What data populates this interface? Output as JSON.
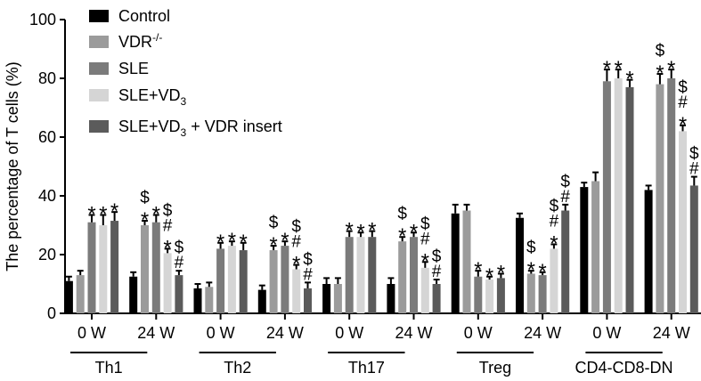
{
  "chart_data": {
    "type": "bar",
    "ylabel": "The percentage of T cells (%)",
    "ylim": [
      0,
      100
    ],
    "yticks": [
      "0",
      "20",
      "40",
      "60",
      "80",
      "100"
    ],
    "grid": false,
    "legend_placement": "top-left",
    "groups": [
      "Th1",
      "Th2",
      "Th17",
      "Treg",
      "CD4-CD8-DN"
    ],
    "timepoints": [
      "0 W",
      "24 W"
    ],
    "series": [
      {
        "name": "Control",
        "sup": "",
        "sub": "",
        "suffix": "",
        "color": "#000000"
      },
      {
        "name": "VDR",
        "sup": "-/-",
        "sub": "",
        "suffix": "",
        "color": "#9b9b9b"
      },
      {
        "name": "SLE",
        "sup": "",
        "sub": "",
        "suffix": "",
        "color": "#7b7b7b"
      },
      {
        "name": "SLE+VD",
        "sup": "",
        "sub": "3",
        "suffix": "",
        "color": "#d5d5d5"
      },
      {
        "name": "SLE+VD",
        "sup": "",
        "sub": "3",
        "suffix": " + VDR insert",
        "color": "#5b5b5b"
      }
    ],
    "values": [
      [
        [
          11,
          13,
          31,
          30,
          31.5
        ],
        [
          12.5,
          30,
          31,
          20.5,
          13
        ]
      ],
      [
        [
          8.5,
          9,
          22,
          23,
          21.5
        ],
        [
          8,
          21.5,
          23,
          15,
          8.5
        ]
      ],
      [
        [
          10,
          10,
          26,
          26,
          26
        ],
        [
          10,
          24.5,
          26,
          15.5,
          10
        ]
      ],
      [
        [
          34,
          35,
          12.5,
          11.5,
          12
        ],
        [
          32.5,
          13.5,
          13,
          22,
          35
        ]
      ],
      [
        [
          43,
          45,
          79,
          80,
          77
        ],
        [
          42,
          78,
          80,
          62,
          43.5
        ]
      ]
    ],
    "errors": [
      [
        [
          1.5,
          1.5,
          2.5,
          3.5,
          3
        ],
        [
          1.5,
          1.5,
          2.5,
          1.5,
          1.5
        ]
      ],
      [
        [
          1.5,
          1.5,
          2,
          1.5,
          2.5
        ],
        [
          1.5,
          1.5,
          1.5,
          1.5,
          2
        ]
      ],
      [
        [
          2,
          2,
          2,
          1.5,
          2
        ],
        [
          2,
          1.5,
          1.5,
          2,
          1.5
        ]
      ],
      [
        [
          3,
          2,
          2,
          1,
          1.5
        ],
        [
          1.5,
          1,
          1,
          1.5,
          2
        ]
      ],
      [
        [
          1.5,
          3,
          4,
          3,
          2.5
        ],
        [
          1.5,
          3.5,
          3,
          2,
          3
        ]
      ]
    ],
    "annotations": [
      [
        [
          "",
          "",
          "*",
          "*",
          "*"
        ],
        [
          "",
          "$*",
          "*",
          "$#*",
          "$#"
        ]
      ],
      [
        [
          "",
          "",
          "*",
          "*",
          "*"
        ],
        [
          "",
          "$*",
          "*",
          "$#*",
          "$#"
        ]
      ],
      [
        [
          "",
          "",
          "*",
          "*",
          "*"
        ],
        [
          "",
          "$*",
          "*",
          "$#*",
          "$#"
        ]
      ],
      [
        [
          "",
          "",
          "*",
          "*",
          "*"
        ],
        [
          "",
          "$*",
          "*",
          "$#*",
          "$#"
        ]
      ],
      [
        [
          "",
          "",
          "*",
          "*",
          "*"
        ],
        [
          "",
          "$*",
          "*",
          "$#*",
          "$#"
        ]
      ]
    ]
  }
}
